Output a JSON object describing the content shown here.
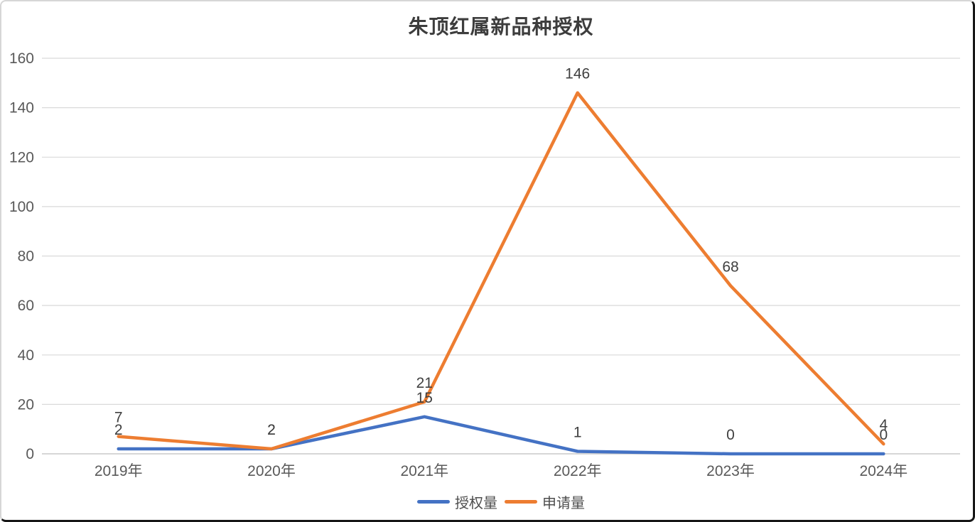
{
  "chart_data": {
    "type": "line",
    "title": "朱顶红属新品种授权",
    "categories": [
      "2019年",
      "2020年",
      "2021年",
      "2022年",
      "2023年",
      "2024年"
    ],
    "series": [
      {
        "name": "授权量",
        "color": "#4472C4",
        "values": [
          2,
          2,
          15,
          1,
          0,
          0
        ]
      },
      {
        "name": "申请量",
        "color": "#ED7D31",
        "values": [
          7,
          2,
          21,
          146,
          68,
          4
        ]
      }
    ],
    "ylim": [
      0,
      160
    ],
    "yticks": [
      0,
      20,
      40,
      60,
      80,
      100,
      120,
      140,
      160
    ],
    "grid": true,
    "data_labels": true,
    "legend_position": "bottom",
    "tick_color": "#595959",
    "label_color": "#404040",
    "gridline_color": "#d9d9d9",
    "axis_line_color": "#c8c8c8"
  }
}
